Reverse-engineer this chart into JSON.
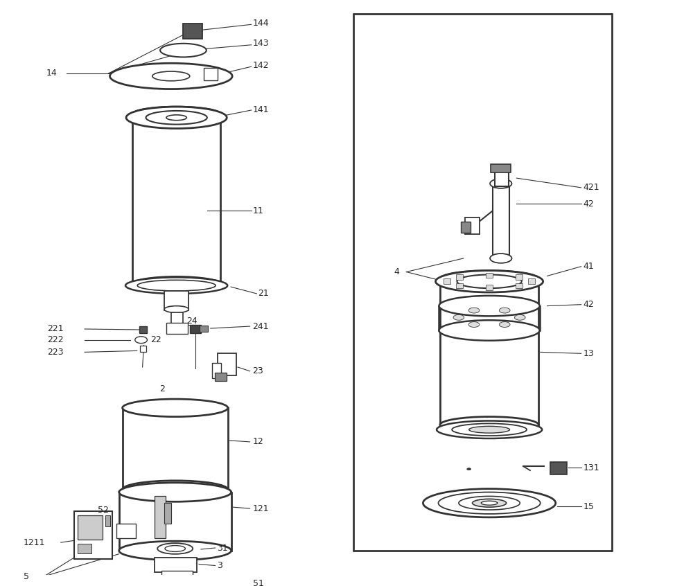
{
  "bg_color": "#ffffff",
  "line_color": "#333333",
  "text_color": "#222222",
  "fig_width": 10.0,
  "fig_height": 8.46,
  "dpi": 100,
  "label_fs": 9,
  "lw_main": 1.5,
  "lw_thin": 0.8
}
